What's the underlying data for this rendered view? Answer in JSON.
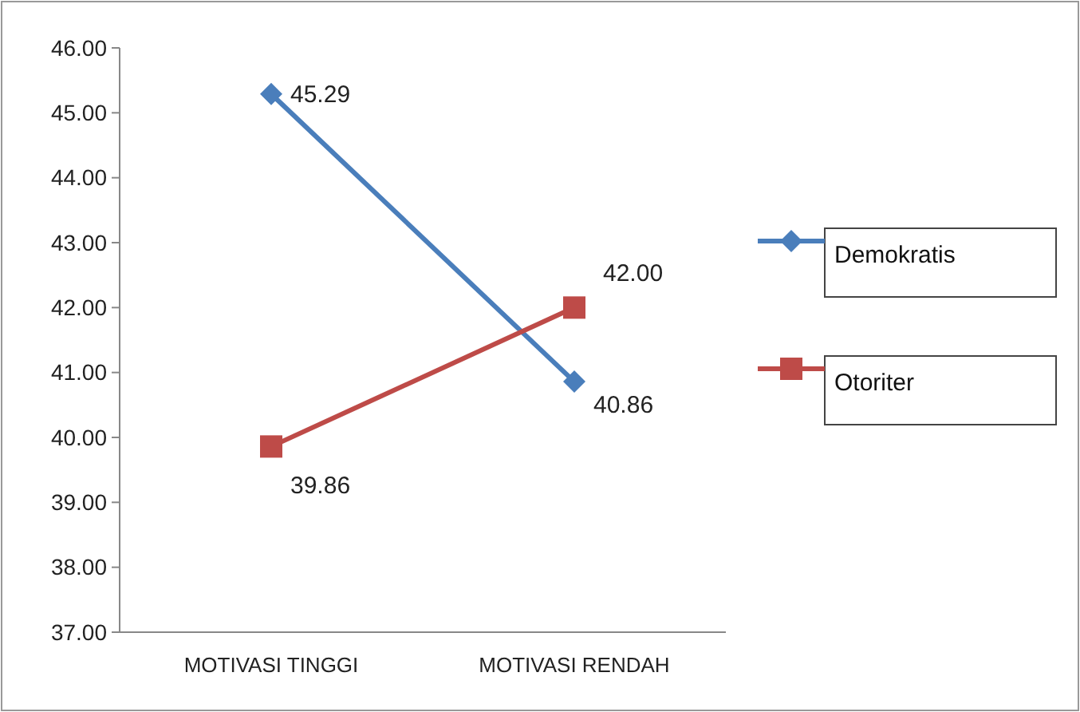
{
  "chart_data": {
    "type": "line",
    "categories": [
      "MOTIVASI TINGGI",
      "MOTIVASI RENDAH"
    ],
    "series": [
      {
        "name": "Demokratis",
        "color": "#4a7ebb",
        "values": [
          45.29,
          40.86
        ],
        "value_labels": [
          "45.29",
          "40.86"
        ],
        "marker": "diamond"
      },
      {
        "name": "Otoriter",
        "color": "#be4b48",
        "values": [
          39.86,
          42.0
        ],
        "value_labels": [
          "39.86",
          "42.00"
        ],
        "marker": "square"
      }
    ],
    "ylim": [
      37,
      46
    ],
    "yticks": [
      {
        "value": 37,
        "label": "37.00"
      },
      {
        "value": 38,
        "label": "38.00"
      },
      {
        "value": 39,
        "label": "39.00"
      },
      {
        "value": 40,
        "label": "40.00"
      },
      {
        "value": 41,
        "label": "41.00"
      },
      {
        "value": 42,
        "label": "42.00"
      },
      {
        "value": 43,
        "label": "43.00"
      },
      {
        "value": 44,
        "label": "44.00"
      },
      {
        "value": 45,
        "label": "45.00"
      },
      {
        "value": 46,
        "label": "46.00"
      }
    ],
    "grid": false,
    "legend": "right",
    "line_style": "solid"
  }
}
